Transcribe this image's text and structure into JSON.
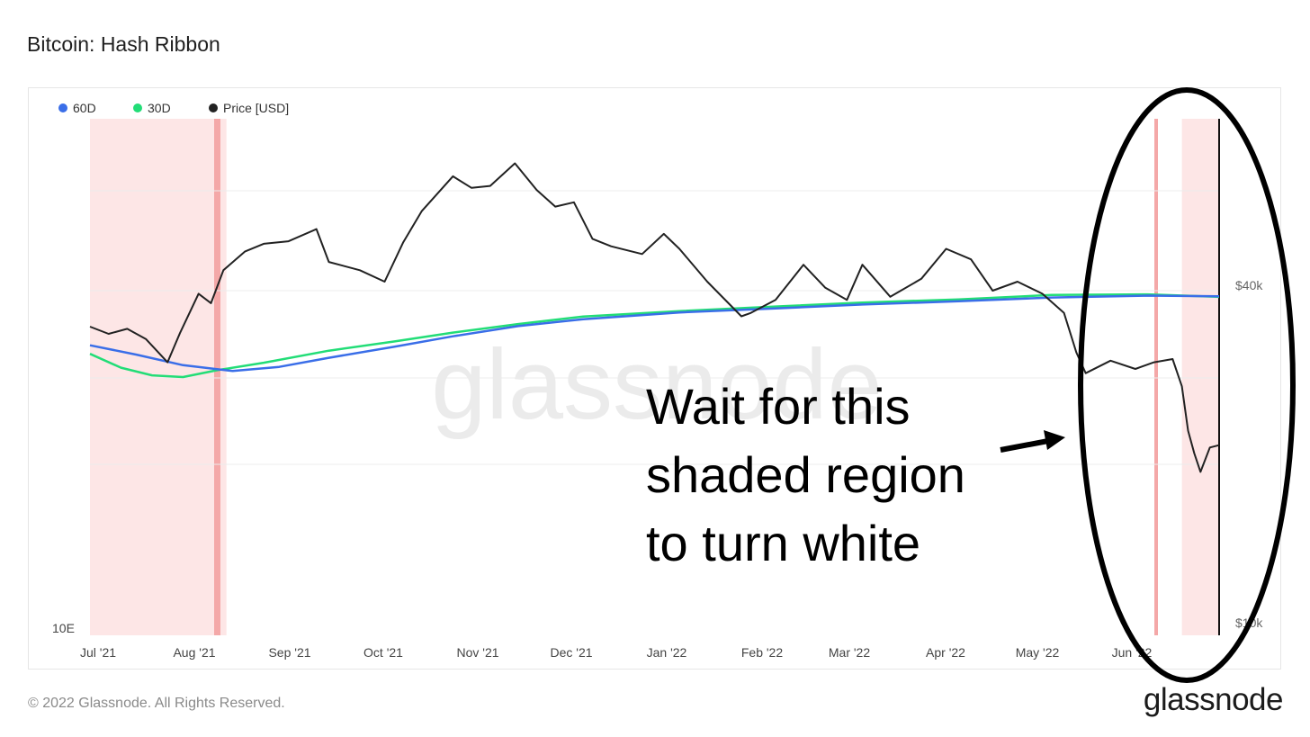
{
  "header": {
    "title": "Bitcoin: Hash Ribbon"
  },
  "footer": {
    "copyright": "© 2022 Glassnode. All Rights Reserved.",
    "logo": "glassnode"
  },
  "watermark": "glassnode",
  "annotation": {
    "text": "Wait for this shaded region to turn white",
    "lines": [
      "Wait for this",
      "shaded region",
      "to turn white"
    ]
  },
  "colors": {
    "series_60d": "#3a6ee8",
    "series_30d": "#22dd77",
    "price": "#222222",
    "shade": "#fde6e6",
    "shade_edge": "#f4a8a8"
  },
  "chart_data": {
    "type": "line",
    "title": "Bitcoin: Hash Ribbon",
    "legend_position": "top-left",
    "grid": true,
    "x_labels": [
      "Jul '21",
      "Aug '21",
      "Sep '21",
      "Oct '21",
      "Nov '21",
      "Dec '21",
      "Jan '22",
      "Feb '22",
      "Mar '22",
      "Apr '22",
      "May '22",
      "Jun '22"
    ],
    "x_range": [
      "2021-06-25",
      "2022-06-24"
    ],
    "left_axis": {
      "min_label": "10E",
      "scale": "log"
    },
    "right_axis": {
      "scale": "log",
      "ticks": [
        {
          "label": "$40k",
          "value": 40000
        },
        {
          "label": "$10k",
          "value": 10000
        }
      ]
    },
    "series": [
      {
        "name": "60D",
        "color": "#3a6ee8",
        "points": [
          [
            "2021-06-25",
            32.0
          ],
          [
            "2021-07-10",
            30.8
          ],
          [
            "2021-07-25",
            29.5
          ],
          [
            "2021-08-10",
            28.8
          ],
          [
            "2021-08-25",
            29.3
          ],
          [
            "2021-09-10",
            30.4
          ],
          [
            "2021-10-01",
            31.8
          ],
          [
            "2021-10-20",
            33.2
          ],
          [
            "2021-11-10",
            34.6
          ],
          [
            "2021-12-01",
            35.6
          ],
          [
            "2022-01-01",
            36.6
          ],
          [
            "2022-02-01",
            37.2
          ],
          [
            "2022-03-01",
            37.8
          ],
          [
            "2022-04-01",
            38.3
          ],
          [
            "2022-05-01",
            38.9
          ],
          [
            "2022-06-01",
            39.2
          ],
          [
            "2022-06-24",
            39.1
          ]
        ]
      },
      {
        "name": "30D",
        "color": "#22dd77",
        "points": [
          [
            "2021-06-25",
            30.9
          ],
          [
            "2021-07-05",
            29.2
          ],
          [
            "2021-07-15",
            28.3
          ],
          [
            "2021-07-25",
            28.1
          ],
          [
            "2021-08-05",
            28.9
          ],
          [
            "2021-08-20",
            29.8
          ],
          [
            "2021-09-10",
            31.3
          ],
          [
            "2021-10-01",
            32.5
          ],
          [
            "2021-10-20",
            33.7
          ],
          [
            "2021-11-10",
            34.9
          ],
          [
            "2021-12-01",
            36.0
          ],
          [
            "2022-01-01",
            36.8
          ],
          [
            "2022-02-01",
            37.5
          ],
          [
            "2022-03-01",
            38.1
          ],
          [
            "2022-04-01",
            38.6
          ],
          [
            "2022-05-01",
            39.3
          ],
          [
            "2022-06-01",
            39.4
          ],
          [
            "2022-06-24",
            39.0
          ]
        ]
      },
      {
        "name": "Price [USD]",
        "color": "#222222",
        "points": [
          [
            "2021-06-25",
            34500
          ],
          [
            "2021-07-01",
            33500
          ],
          [
            "2021-07-07",
            34200
          ],
          [
            "2021-07-13",
            32800
          ],
          [
            "2021-07-20",
            29800
          ],
          [
            "2021-07-24",
            33600
          ],
          [
            "2021-07-30",
            39500
          ],
          [
            "2021-08-03",
            38000
          ],
          [
            "2021-08-07",
            43500
          ],
          [
            "2021-08-14",
            47000
          ],
          [
            "2021-08-20",
            48500
          ],
          [
            "2021-08-28",
            49000
          ],
          [
            "2021-09-06",
            51500
          ],
          [
            "2021-09-10",
            45000
          ],
          [
            "2021-09-20",
            43500
          ],
          [
            "2021-09-28",
            41500
          ],
          [
            "2021-10-04",
            48800
          ],
          [
            "2021-10-10",
            55500
          ],
          [
            "2021-10-20",
            64000
          ],
          [
            "2021-10-26",
            61000
          ],
          [
            "2021-11-01",
            61500
          ],
          [
            "2021-11-09",
            67500
          ],
          [
            "2021-11-16",
            60500
          ],
          [
            "2021-11-22",
            56500
          ],
          [
            "2021-11-28",
            57500
          ],
          [
            "2021-12-04",
            49500
          ],
          [
            "2021-12-10",
            48000
          ],
          [
            "2021-12-20",
            46500
          ],
          [
            "2021-12-27",
            50500
          ],
          [
            "2022-01-01",
            47500
          ],
          [
            "2022-01-10",
            41500
          ],
          [
            "2022-01-21",
            36000
          ],
          [
            "2022-01-24",
            36500
          ],
          [
            "2022-02-01",
            38500
          ],
          [
            "2022-02-10",
            44500
          ],
          [
            "2022-02-17",
            40500
          ],
          [
            "2022-02-24",
            38500
          ],
          [
            "2022-03-01",
            44500
          ],
          [
            "2022-03-10",
            39000
          ],
          [
            "2022-03-20",
            42000
          ],
          [
            "2022-03-28",
            47500
          ],
          [
            "2022-04-05",
            45500
          ],
          [
            "2022-04-12",
            40000
          ],
          [
            "2022-04-20",
            41500
          ],
          [
            "2022-04-28",
            39500
          ],
          [
            "2022-05-05",
            36500
          ],
          [
            "2022-05-09",
            31000
          ],
          [
            "2022-05-12",
            28500
          ],
          [
            "2022-05-20",
            30000
          ],
          [
            "2022-05-28",
            29000
          ],
          [
            "2022-06-03",
            29800
          ],
          [
            "2022-06-09",
            30200
          ],
          [
            "2022-06-12",
            27000
          ],
          [
            "2022-06-14",
            22500
          ],
          [
            "2022-06-16",
            20500
          ],
          [
            "2022-06-18",
            19000
          ],
          [
            "2022-06-21",
            21000
          ],
          [
            "2022-06-24",
            21200
          ]
        ]
      }
    ],
    "shaded_regions": [
      {
        "from": "2021-06-25",
        "to": "2021-08-08"
      },
      {
        "from": "2022-06-12",
        "to": "2022-06-24"
      }
    ]
  }
}
